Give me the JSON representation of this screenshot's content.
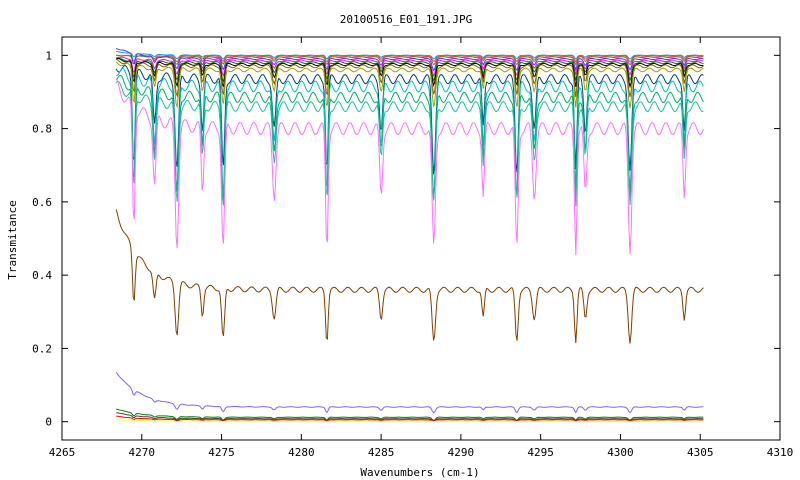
{
  "chart_data": {
    "type": "line",
    "title": "20100516_E01_191.JPG",
    "xlabel": "Wavenumbers (cm-1)",
    "ylabel": "Transmitance",
    "xlim": [
      4265,
      4310
    ],
    "ylim": [
      -0.05,
      1.05
    ],
    "x_ticks": [
      4265,
      4270,
      4275,
      4280,
      4285,
      4290,
      4295,
      4300,
      4305,
      4310
    ],
    "y_ticks": [
      0,
      0.2,
      0.4,
      0.6,
      0.8,
      1
    ],
    "x_tick_labels": [
      "4265",
      "4270",
      "4275",
      "4280",
      "4285",
      "4290",
      "4295",
      "4300",
      "4305",
      "4310"
    ],
    "y_tick_labels": [
      "0",
      "0.2",
      "0.4",
      "0.6",
      "0.8",
      "1"
    ],
    "grid": false,
    "x_range_data": [
      4268.4,
      4305.2
    ],
    "absorption_lines": [
      4269.5,
      4270.8,
      4272.2,
      4273.8,
      4275.1,
      4278.3,
      4281.6,
      4285.0,
      4288.3,
      4291.4,
      4293.5,
      4294.6,
      4297.2,
      4297.8,
      4300.6,
      4304.0
    ],
    "series": [
      {
        "color": "#00a0ff",
        "baseline": 1.0,
        "depth": 0.01,
        "start": 1.01
      },
      {
        "color": "#ff4040",
        "baseline": 0.998,
        "depth": 0.015,
        "start": 1.0
      },
      {
        "color": "#7f7f00",
        "baseline": 0.995,
        "depth": 0.02,
        "start": 1.0
      },
      {
        "color": "#4040ff",
        "baseline": 0.99,
        "depth": 0.03,
        "start": 1.02
      },
      {
        "color": "#ff00ff",
        "baseline": 0.985,
        "depth": 0.04,
        "start": 0.995
      },
      {
        "color": "#008000",
        "baseline": 0.98,
        "depth": 0.05,
        "start": 0.99
      },
      {
        "color": "#000000",
        "baseline": 0.975,
        "depth": 0.06,
        "start": 0.99
      },
      {
        "color": "#806000",
        "baseline": 0.97,
        "depth": 0.08,
        "start": 0.985
      },
      {
        "color": "#a0a000",
        "baseline": 0.96,
        "depth": 0.1,
        "start": 0.98
      },
      {
        "color": "#004080",
        "baseline": 0.935,
        "depth": 0.25,
        "start": 0.97
      },
      {
        "color": "#00c0c0",
        "baseline": 0.915,
        "depth": 0.3,
        "start": 0.96
      },
      {
        "color": "#00b060",
        "baseline": 0.885,
        "depth": 0.28,
        "start": 0.94
      },
      {
        "color": "#20c0a0",
        "baseline": 0.86,
        "depth": 0.27,
        "start": 0.92
      },
      {
        "color": "#ff70ff",
        "baseline": 0.8,
        "depth": 0.33,
        "start": 0.92
      },
      {
        "color": "#804000",
        "baseline": 0.36,
        "depth": 0.14,
        "start": 0.575
      },
      {
        "color": "#8060ff",
        "baseline": 0.04,
        "depth": 0.015,
        "start": 0.135
      },
      {
        "color": "#008000",
        "baseline": 0.012,
        "depth": 0.008,
        "start": 0.035
      },
      {
        "color": "#404040",
        "baseline": 0.008,
        "depth": 0.006,
        "start": 0.025
      },
      {
        "color": "#ff0000",
        "baseline": 0.005,
        "depth": 0.004,
        "start": 0.015
      },
      {
        "color": "#ffff40",
        "baseline": 0.002,
        "depth": 0.002,
        "start": 0.005
      }
    ]
  }
}
